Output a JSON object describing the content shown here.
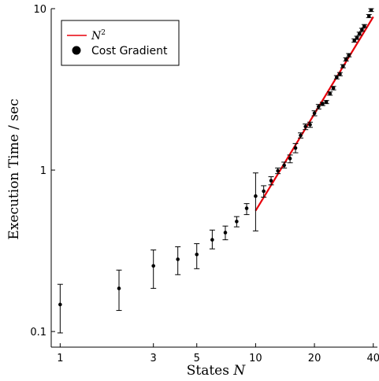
{
  "chart_data": {
    "type": "scatter",
    "xscale": "log",
    "yscale": "log",
    "xlim": [
      0.9,
      42
    ],
    "ylim": [
      0.08,
      10
    ],
    "xticks": [
      {
        "value": 1,
        "label": "1"
      },
      {
        "value": 3,
        "label": "3"
      },
      {
        "value": 5,
        "label": "5"
      },
      {
        "value": 10,
        "label": "10"
      },
      {
        "value": 20,
        "label": "20"
      },
      {
        "value": 40,
        "label": "40"
      }
    ],
    "yticks": [
      {
        "value": 0.1,
        "label": "0.1"
      },
      {
        "value": 1,
        "label": "1"
      },
      {
        "value": 10,
        "label": "10"
      }
    ],
    "xlabel": "States N",
    "ylabel": "Execution Time / sec",
    "grid": false,
    "legend_position": "top-left",
    "series": [
      {
        "name": "N²",
        "kind": "line",
        "color": "#e8000b",
        "x": [
          10,
          40
        ],
        "y": [
          0.56,
          8.9
        ]
      },
      {
        "name": "Cost Gradient",
        "kind": "points-with-errorbars",
        "color": "#000000",
        "points": [
          {
            "x": 1,
            "y": 0.147,
            "lo": 0.098,
            "hi": 0.196
          },
          {
            "x": 2,
            "y": 0.185,
            "lo": 0.135,
            "hi": 0.24
          },
          {
            "x": 3,
            "y": 0.255,
            "lo": 0.185,
            "hi": 0.32
          },
          {
            "x": 4,
            "y": 0.28,
            "lo": 0.225,
            "hi": 0.335
          },
          {
            "x": 5,
            "y": 0.3,
            "lo": 0.245,
            "hi": 0.35
          },
          {
            "x": 6,
            "y": 0.37,
            "lo": 0.325,
            "hi": 0.425
          },
          {
            "x": 7,
            "y": 0.41,
            "lo": 0.37,
            "hi": 0.45
          },
          {
            "x": 8,
            "y": 0.48,
            "lo": 0.445,
            "hi": 0.515
          },
          {
            "x": 9,
            "y": 0.58,
            "lo": 0.53,
            "hi": 0.62
          },
          {
            "x": 10,
            "y": 0.69,
            "lo": 0.42,
            "hi": 0.96
          },
          {
            "x": 11,
            "y": 0.74,
            "lo": 0.68,
            "hi": 0.8
          },
          {
            "x": 12,
            "y": 0.86,
            "lo": 0.81,
            "hi": 0.91
          },
          {
            "x": 13,
            "y": 0.99,
            "lo": 0.95,
            "hi": 1.03
          },
          {
            "x": 14,
            "y": 1.07,
            "lo": 1.03,
            "hi": 1.12
          },
          {
            "x": 15,
            "y": 1.18,
            "lo": 1.11,
            "hi": 1.24
          },
          {
            "x": 16,
            "y": 1.37,
            "lo": 1.28,
            "hi": 1.46
          },
          {
            "x": 17,
            "y": 1.64,
            "lo": 1.58,
            "hi": 1.7
          },
          {
            "x": 18,
            "y": 1.86,
            "lo": 1.78,
            "hi": 1.93
          },
          {
            "x": 19,
            "y": 1.91,
            "lo": 1.84,
            "hi": 1.98
          },
          {
            "x": 20,
            "y": 2.25,
            "lo": 2.17,
            "hi": 2.33
          },
          {
            "x": 21,
            "y": 2.47,
            "lo": 2.39,
            "hi": 2.55
          },
          {
            "x": 22,
            "y": 2.57,
            "lo": 2.51,
            "hi": 2.63
          },
          {
            "x": 23,
            "y": 2.64,
            "lo": 2.58,
            "hi": 2.7
          },
          {
            "x": 24,
            "y": 2.98,
            "lo": 2.91,
            "hi": 3.05
          },
          {
            "x": 25,
            "y": 3.22,
            "lo": 3.14,
            "hi": 3.3
          },
          {
            "x": 26,
            "y": 3.76,
            "lo": 3.67,
            "hi": 3.85
          },
          {
            "x": 27,
            "y": 3.93,
            "lo": 3.84,
            "hi": 4.02
          },
          {
            "x": 28,
            "y": 4.4,
            "lo": 4.3,
            "hi": 4.5
          },
          {
            "x": 29,
            "y": 4.85,
            "lo": 4.74,
            "hi": 4.96
          },
          {
            "x": 30,
            "y": 5.15,
            "lo": 5.03,
            "hi": 5.27
          },
          {
            "x": 32,
            "y": 6.35,
            "lo": 6.2,
            "hi": 6.5
          },
          {
            "x": 33,
            "y": 6.6,
            "lo": 6.45,
            "hi": 6.75
          },
          {
            "x": 34,
            "y": 7.0,
            "lo": 6.85,
            "hi": 7.15
          },
          {
            "x": 35,
            "y": 7.4,
            "lo": 7.24,
            "hi": 7.56
          },
          {
            "x": 36,
            "y": 7.8,
            "lo": 7.63,
            "hi": 7.97
          },
          {
            "x": 38,
            "y": 9.0,
            "lo": 8.8,
            "hi": 9.2
          },
          {
            "x": 39,
            "y": 9.8,
            "lo": 9.6,
            "hi": 10.0
          }
        ]
      }
    ]
  },
  "legend": {
    "line_label_base": "N",
    "line_label_exp": "2",
    "points_label": "Cost Gradient"
  },
  "labels": {
    "xlabel_text": "States ",
    "xlabel_var": "N",
    "ylabel_text": "Execution Time / sec"
  }
}
